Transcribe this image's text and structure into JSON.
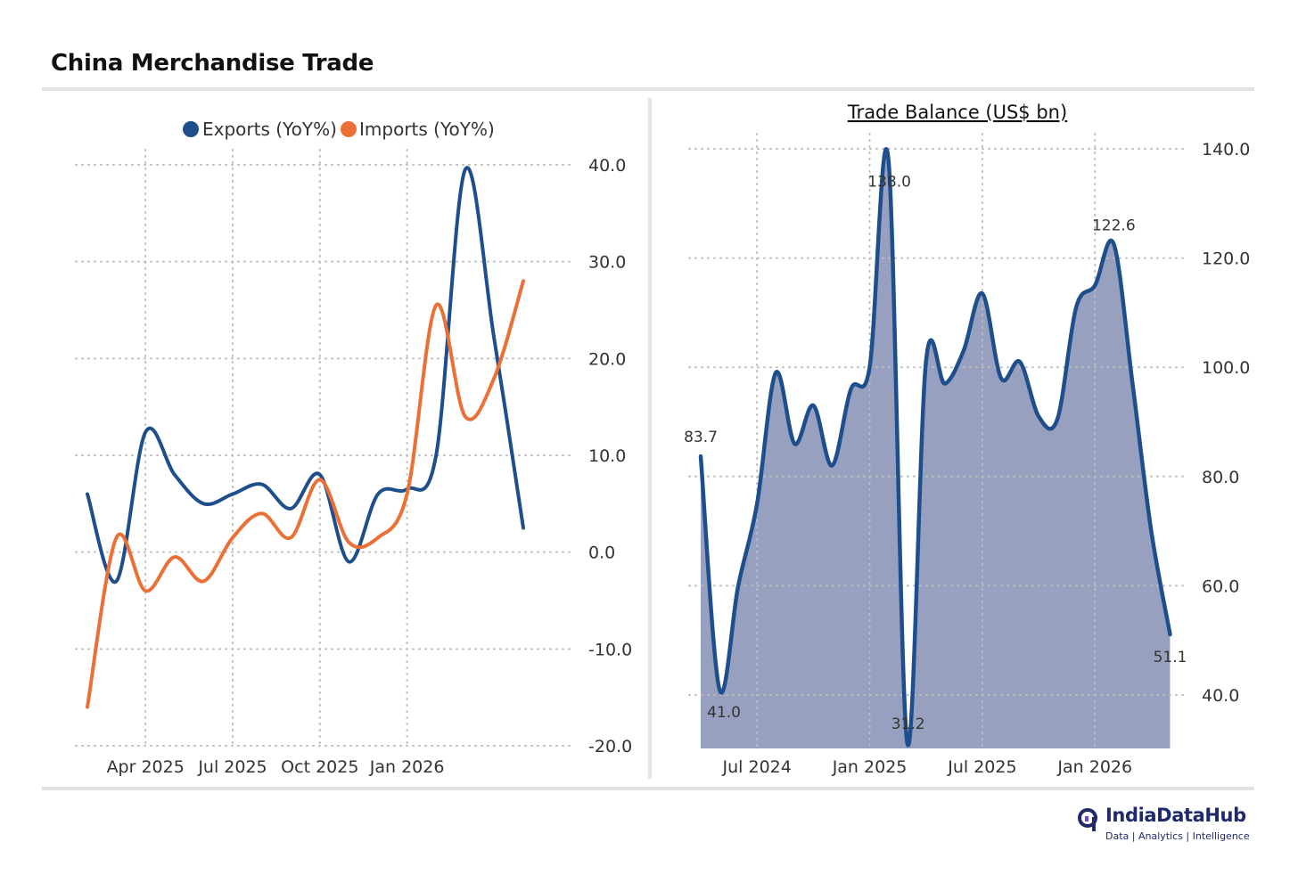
{
  "page": {
    "title": "China Merchandise Trade",
    "brand": {
      "name": "IndiaDataHub",
      "tagline": "Data | Analytics | Intelligence",
      "color": "#1f2a6b"
    }
  },
  "chart_data": [
    {
      "type": "line",
      "title": "",
      "legend": [
        "Exports (YoY%)",
        "Imports (YoY%)"
      ],
      "legend_position": "top",
      "y_axis_side": "right",
      "ylim": [
        -20,
        40
      ],
      "yticks": [
        40,
        30,
        20,
        10,
        0,
        -10,
        -20
      ],
      "ytick_labels": [
        "40.0",
        "30.0",
        "20.0",
        "10.0",
        "0.0",
        "-10.0",
        "-20.0"
      ],
      "x": [
        "Feb 2025",
        "Mar 2025",
        "Apr 2025",
        "May 2025",
        "Jun 2025",
        "Jul 2025",
        "Aug 2025",
        "Sep 2025",
        "Oct 2025",
        "Nov 2025",
        "Dec 2025",
        "Jan 2026",
        "Feb 2026",
        "Mar 2026",
        "Apr 2026",
        "May 2026"
      ],
      "xtick_labels": [
        "Apr 2025",
        "Jul 2025",
        "Oct 2025",
        "Jan 2026"
      ],
      "xtick_index": [
        2,
        5,
        8,
        11
      ],
      "grid": true,
      "series": [
        {
          "name": "Exports (YoY%)",
          "color": "#1f4e8c",
          "values": [
            6.0,
            -3.0,
            12.4,
            8.0,
            5.0,
            6.0,
            7.0,
            4.5,
            8.0,
            -1.0,
            6.0,
            6.5,
            10.0,
            39.5,
            22.0,
            2.5
          ]
        },
        {
          "name": "Imports (YoY%)",
          "color": "#eb7035",
          "values": [
            -16.0,
            1.5,
            -4.0,
            -0.5,
            -3.0,
            1.5,
            4.0,
            1.5,
            7.5,
            1.0,
            1.5,
            6.0,
            25.5,
            14.0,
            18.0,
            28.0
          ]
        }
      ]
    },
    {
      "type": "area",
      "title": "Trade Balance (US$ bn)",
      "y_axis_side": "right",
      "ylim": [
        30,
        140
      ],
      "yticks": [
        140,
        120,
        100,
        80,
        60,
        40
      ],
      "ytick_labels": [
        "140.0",
        "120.0",
        "100.0",
        "80.0",
        "60.0",
        "40.0"
      ],
      "x": [
        "Apr 2024",
        "May 2024",
        "Jun 2024",
        "Jul 2024",
        "Aug 2024",
        "Sep 2024",
        "Oct 2024",
        "Nov 2024",
        "Dec 2024",
        "Jan 2025",
        "Feb 2025",
        "Mar 2025",
        "Apr 2025",
        "May 2025",
        "Jun 2025",
        "Jul 2025",
        "Aug 2025",
        "Sep 2025",
        "Oct 2025",
        "Nov 2025",
        "Dec 2025",
        "Jan 2026",
        "Feb 2026",
        "Mar 2026",
        "Apr 2026",
        "May 2026"
      ],
      "xtick_labels": [
        "Jul 2024",
        "Jan 2025",
        "Jul 2025",
        "Jan 2026"
      ],
      "xtick_index": [
        3,
        9,
        15,
        21
      ],
      "grid": true,
      "series": [
        {
          "name": "Trade Balance (US$ bn)",
          "line_color": "#1f4e8c",
          "fill_color": "#98a0c0",
          "values": [
            83.7,
            41.0,
            60.0,
            75.0,
            99.0,
            86.0,
            93.0,
            82.0,
            96.0,
            100.0,
            138.0,
            31.2,
            101.0,
            97.0,
            103.0,
            113.5,
            98.0,
            101.0,
            91.0,
            90.5,
            111.0,
            115.0,
            122.6,
            97.0,
            70.0,
            51.1
          ]
        }
      ],
      "data_labels": [
        {
          "index": 0,
          "text": "83.7"
        },
        {
          "index": 1,
          "text": "41.0"
        },
        {
          "index": 10,
          "text": "138.0"
        },
        {
          "index": 11,
          "text": "31.2"
        },
        {
          "index": 22,
          "text": "122.6"
        },
        {
          "index": 25,
          "text": "51.1"
        }
      ]
    }
  ]
}
